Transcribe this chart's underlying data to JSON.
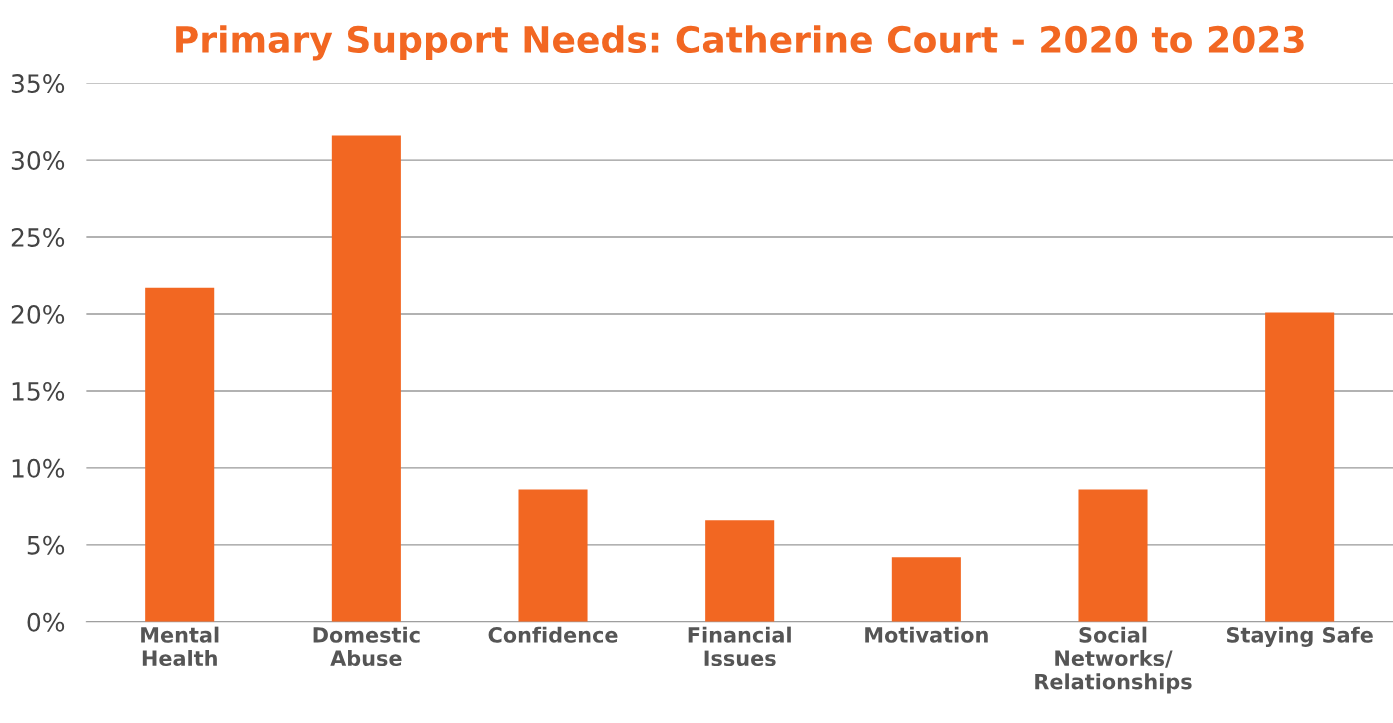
{
  "chart_data": {
    "type": "bar",
    "title": "Primary Support Needs: Catherine Court - 2020 to 2023",
    "categories": [
      "Mental\nHealth",
      "Domestic\nAbuse",
      "Confidence",
      "Financial\nIssues",
      "Motivation",
      "Social\nNetworks/\nRelationships",
      "Staying Safe"
    ],
    "values": [
      21.7,
      31.6,
      8.6,
      6.6,
      4.2,
      8.6,
      20.1
    ],
    "color": "#f26722",
    "ylim": [
      0,
      35
    ],
    "yticks": [
      {
        "value": 0,
        "label": "0%"
      },
      {
        "value": 5,
        "label": "5%"
      },
      {
        "value": 10,
        "label": "10%"
      },
      {
        "value": 15,
        "label": "15%"
      },
      {
        "value": 20,
        "label": "20%"
      },
      {
        "value": 25,
        "label": "25%"
      },
      {
        "value": 30,
        "label": "30%"
      },
      {
        "value": 35,
        "label": "35%"
      }
    ],
    "grid": "y"
  }
}
